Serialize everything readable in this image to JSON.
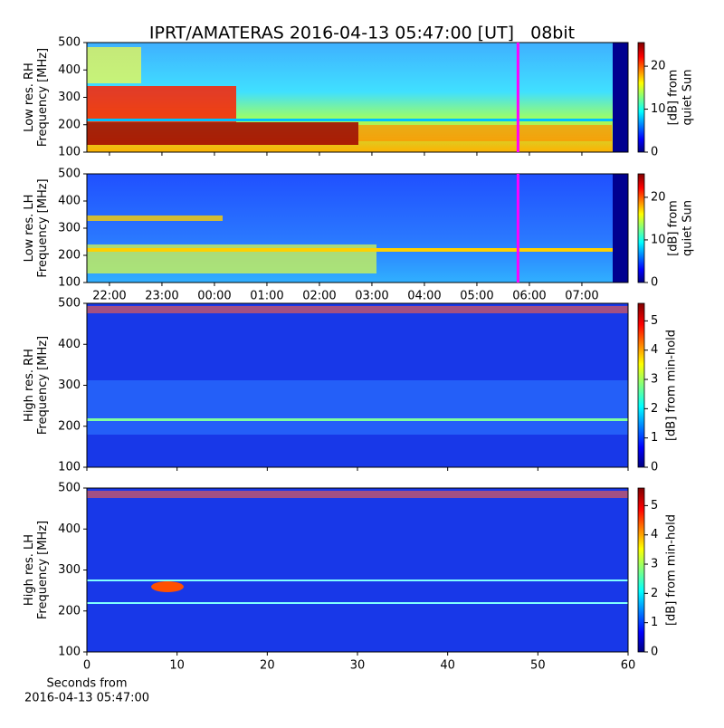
{
  "chart_data": [
    {
      "type": "heatmap",
      "title": "IPRT/AMATERAS 2016-04-13 05:47:00 [UT]   08bit",
      "ylabel": [
        "Low res. RH",
        "Frequency [MHz]"
      ],
      "ylim": [
        100,
        500
      ],
      "yticks": [
        100,
        200,
        300,
        400,
        500
      ],
      "xlim": [
        21.57,
        31.88
      ],
      "marker_x": 29.783,
      "marker_color": "#ff00ff",
      "clabel": [
        "[dB] from",
        "quiet Sun"
      ],
      "clim": [
        0,
        25.5
      ],
      "cticks": [
        0,
        10,
        20
      ]
    },
    {
      "type": "heatmap",
      "ylabel": [
        "Low res. LH",
        "Frequency [MHz]"
      ],
      "ylim": [
        100,
        500
      ],
      "yticks": [
        100,
        200,
        300,
        400,
        500
      ],
      "xlim": [
        21.57,
        31.88
      ],
      "marker_x": 29.783,
      "marker_color": "#ff00ff",
      "xticks": [
        {
          "value": 22,
          "label": "22:00"
        },
        {
          "value": 23,
          "label": "23:00"
        },
        {
          "value": 24,
          "label": "00:00"
        },
        {
          "value": 25,
          "label": "01:00"
        },
        {
          "value": 26,
          "label": "02:00"
        },
        {
          "value": 27,
          "label": "03:00"
        },
        {
          "value": 28,
          "label": "04:00"
        },
        {
          "value": 29,
          "label": "05:00"
        },
        {
          "value": 30,
          "label": "06:00"
        },
        {
          "value": 31,
          "label": "07:00"
        }
      ],
      "clabel": [
        "[dB] from",
        "quiet Sun"
      ],
      "clim": [
        0,
        25.5
      ],
      "cticks": [
        0,
        10,
        20
      ]
    },
    {
      "type": "heatmap",
      "ylabel": [
        "High res. RH",
        "Frequency [MHz]"
      ],
      "ylim": [
        100,
        500
      ],
      "yticks": [
        100,
        200,
        300,
        400,
        500
      ],
      "xlim": [
        0,
        60
      ],
      "clabel": [
        "[dB] from min-hold"
      ],
      "clim": [
        0,
        5.6
      ],
      "cticks": [
        0,
        1,
        2,
        3,
        4,
        5
      ]
    },
    {
      "type": "heatmap",
      "ylabel": [
        "High res. LH",
        "Frequency [MHz]"
      ],
      "ylim": [
        100,
        500
      ],
      "yticks": [
        100,
        200,
        300,
        400,
        500
      ],
      "xlim": [
        0,
        60
      ],
      "xticks": [
        0,
        10,
        20,
        30,
        40,
        50,
        60
      ],
      "xlabel": [
        "Seconds from",
        "2016-04-13 05:47:00"
      ],
      "clabel": [
        "[dB] from min-hold"
      ],
      "clim": [
        0,
        5.6
      ],
      "cticks": [
        0,
        1,
        2,
        3,
        4,
        5
      ]
    }
  ]
}
